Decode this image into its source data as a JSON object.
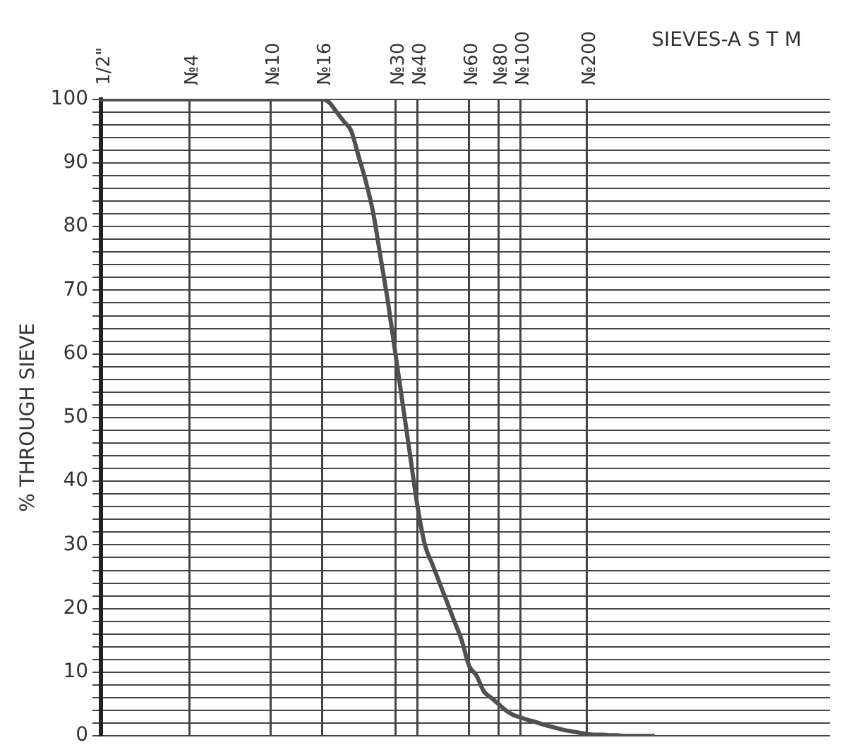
{
  "chart_data": {
    "type": "line",
    "xlabel": "SIEVES-A S T M",
    "ylabel": "% THROUGH SIEVE",
    "categories": [
      "1/2\"",
      null,
      null,
      null,
      null,
      null,
      null,
      null,
      null,
      null,
      null,
      null,
      "№4",
      null,
      null,
      null,
      null,
      null,
      null,
      null,
      null,
      null,
      null,
      "№10",
      null,
      null,
      null,
      null,
      null,
      null,
      "№16",
      null,
      null,
      null,
      null,
      null,
      null,
      null,
      null,
      null,
      "№30",
      null,
      null,
      "№40",
      null,
      null,
      null,
      null,
      null,
      null,
      "№60",
      null,
      null,
      null,
      "№80",
      null,
      null,
      "№100",
      null,
      null,
      null,
      null,
      null,
      null,
      null,
      null,
      "№200",
      null,
      null,
      null,
      null,
      null,
      null,
      null,
      null,
      null,
      null,
      null,
      null,
      null,
      null,
      null,
      null,
      null,
      null,
      null,
      null,
      null,
      null,
      null,
      null,
      null,
      null,
      null,
      null,
      null,
      null,
      null,
      null,
      null
    ],
    "series": [
      {
        "color": "#505050",
        "values": [
          100,
          100,
          100,
          100,
          100,
          100,
          100,
          100,
          100,
          100,
          100,
          100,
          100,
          100,
          100,
          100,
          100,
          100,
          100,
          100,
          100,
          100,
          100,
          100,
          100,
          100,
          100,
          100,
          100,
          100,
          100,
          99.5,
          98,
          96.5,
          95,
          91,
          87,
          82,
          75,
          68,
          60,
          52,
          44,
          36,
          30,
          27,
          24,
          21,
          18,
          15,
          11,
          9.5,
          7,
          6,
          5,
          4,
          3.3,
          2.9,
          2.5,
          2.2,
          1.8,
          1.5,
          1.2,
          0.9,
          0.7,
          0.5,
          0.3,
          0.2,
          0.2,
          0.1,
          0.1,
          0,
          0,
          0,
          0,
          0,
          null,
          null,
          null,
          null,
          null,
          null,
          null,
          null,
          null,
          null,
          null,
          null,
          null,
          null,
          null,
          null,
          null,
          null,
          null,
          null,
          null,
          null,
          null,
          null
        ]
      }
    ],
    "ylim": [
      0,
      100
    ],
    "yticks": [
      0,
      {
        "value": 2,
        "label": null
      },
      {
        "value": 4,
        "label": null
      },
      {
        "value": 6,
        "label": null
      },
      {
        "value": 8,
        "label": null
      },
      10,
      {
        "value": 12,
        "label": null
      },
      {
        "value": 14,
        "label": null
      },
      {
        "value": 16,
        "label": null
      },
      {
        "value": 18,
        "label": null
      },
      20,
      {
        "value": 22,
        "label": null
      },
      {
        "value": 24,
        "label": null
      },
      {
        "value": 26,
        "label": null
      },
      {
        "value": 28,
        "label": null
      },
      30,
      {
        "value": 32,
        "label": null
      },
      {
        "value": 34,
        "label": null
      },
      {
        "value": 36,
        "label": null
      },
      {
        "value": 38,
        "label": null
      },
      40,
      {
        "value": 42,
        "label": null
      },
      {
        "value": 44,
        "label": null
      },
      {
        "value": 46,
        "label": null
      },
      {
        "value": 48,
        "label": null
      },
      50,
      {
        "value": 52,
        "label": null
      },
      {
        "value": 54,
        "label": null
      },
      {
        "value": 56,
        "label": null
      },
      {
        "value": 58,
        "label": null
      },
      60,
      {
        "value": 62,
        "label": null
      },
      {
        "value": 64,
        "label": null
      },
      {
        "value": 66,
        "label": null
      },
      {
        "value": 68,
        "label": null
      },
      70,
      {
        "value": 72,
        "label": null
      },
      {
        "value": 74,
        "label": null
      },
      {
        "value": 76,
        "label": null
      },
      {
        "value": 78,
        "label": null
      },
      80,
      {
        "value": 82,
        "label": null
      },
      {
        "value": 84,
        "label": null
      },
      {
        "value": 86,
        "label": null
      },
      {
        "value": 88,
        "label": null
      },
      90,
      {
        "value": 92,
        "label": null
      },
      {
        "value": 94,
        "label": null
      },
      {
        "value": 96,
        "label": null
      },
      {
        "value": 98,
        "label": null
      },
      100
    ],
    "grid": true,
    "legend": false,
    "marker": "none",
    "line_style": "solid"
  }
}
